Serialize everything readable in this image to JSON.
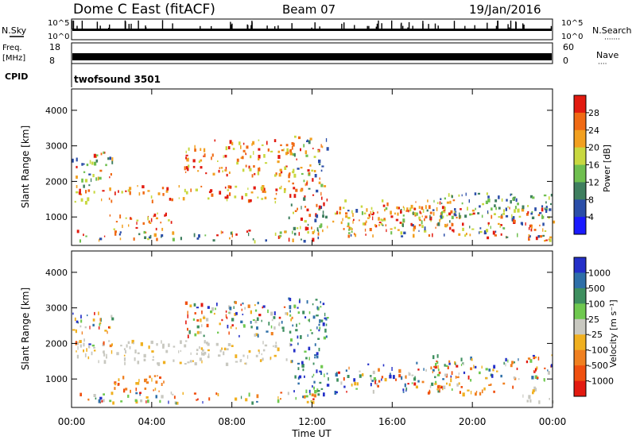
{
  "header": {
    "station": "Dome C East (fitACF)",
    "beam": "Beam 07",
    "date": "19/Jan/2016"
  },
  "top_panels": {
    "nsky_label": "N.Sky",
    "nsearch_label": "N.Search",
    "nsearch_dots": "·······",
    "nsky_ticks": [
      "10^5",
      "10^0"
    ],
    "nsearch_ticks": [
      "10^5",
      "10^0"
    ],
    "freq_label_1": "Freq.",
    "freq_label_2": "[MHz]",
    "freq_ticks": [
      "18",
      "8"
    ],
    "nave_label": "Nave",
    "nave_dots": "····",
    "nave_ticks": [
      "60",
      "0"
    ],
    "cpid_label": "CPID",
    "cpid_value": "twofsound 3501"
  },
  "chart_data": [
    {
      "type": "heatmap",
      "name": "power",
      "ylabel": "Slant Range [km]",
      "xlabel": "",
      "ylim": [
        200,
        4600
      ],
      "y_ticks": [
        "1000",
        "2000",
        "3000",
        "4000"
      ],
      "x_range_hours": [
        0,
        24
      ],
      "colorbar": {
        "label": "Power [dB]",
        "ticks": [
          "4",
          "8",
          "12",
          "16",
          "20",
          "24",
          "28"
        ],
        "colors": [
          "#1a1aff",
          "#2b4ea8",
          "#3f7f5f",
          "#6fbf4f",
          "#c8d840",
          "#f2a020",
          "#f06a14",
          "#e21b10"
        ]
      },
      "echo_bands": [
        {
          "t0": 0.1,
          "t1": 11.0,
          "r0": 1450,
          "r1": 1900,
          "level": "high"
        },
        {
          "t0": 1.8,
          "t1": 5.0,
          "r0": 650,
          "r1": 1150,
          "level": "high"
        },
        {
          "t0": 5.5,
          "t1": 11.2,
          "r0": 2200,
          "r1": 3200,
          "level": "high"
        },
        {
          "t0": 0.2,
          "t1": 12.5,
          "r0": 350,
          "r1": 650,
          "level": "mixed"
        },
        {
          "t0": 10.8,
          "t1": 12.8,
          "r0": 500,
          "r1": 3300,
          "level": "mixed"
        },
        {
          "t0": 13.0,
          "t1": 19.5,
          "r0": 650,
          "r1": 1500,
          "level": "high"
        },
        {
          "t0": 13.5,
          "t1": 24.0,
          "r0": 450,
          "r1": 1300,
          "level": "mixed"
        },
        {
          "t0": 18.0,
          "t1": 24.0,
          "r0": 1000,
          "r1": 1700,
          "level": "low"
        },
        {
          "t0": 0.0,
          "t1": 2.0,
          "r0": 1900,
          "r1": 2900,
          "level": "mixed"
        },
        {
          "t0": 22.5,
          "t1": 24.0,
          "r0": 350,
          "r1": 800,
          "level": "high"
        }
      ]
    },
    {
      "type": "heatmap",
      "name": "velocity",
      "ylabel": "Slant Range [km]",
      "xlabel": "Time UT",
      "ylim": [
        200,
        4600
      ],
      "y_ticks": [
        "1000",
        "2000",
        "3000",
        "4000"
      ],
      "x_ticks": [
        "00:00",
        "04:00",
        "08:00",
        "12:00",
        "16:00",
        "20:00",
        "00:00"
      ],
      "x_range_hours": [
        0,
        24
      ],
      "colorbar": {
        "label": "Velocity [m s⁻¹]",
        "ticks": [
          "1000",
          "500",
          "100",
          "25",
          "-25",
          "-100",
          "-500",
          "-1000"
        ],
        "colors": [
          "#2430c8",
          "#2e6fa8",
          "#3e8f5f",
          "#6fc84f",
          "#c8c8c0",
          "#f0b020",
          "#f08020",
          "#f05010",
          "#e31a10"
        ]
      },
      "echo_bands": [
        {
          "t0": 0.1,
          "t1": 11.0,
          "r0": 1450,
          "r1": 2100,
          "level": "grey"
        },
        {
          "t0": 1.8,
          "t1": 5.0,
          "r0": 650,
          "r1": 1150,
          "level": "negative"
        },
        {
          "t0": 5.5,
          "t1": 11.2,
          "r0": 2200,
          "r1": 3200,
          "level": "mixed"
        },
        {
          "t0": 0.2,
          "t1": 12.5,
          "r0": 350,
          "r1": 650,
          "level": "mixed"
        },
        {
          "t0": 10.8,
          "t1": 12.8,
          "r0": 500,
          "r1": 3300,
          "level": "positive"
        },
        {
          "t0": 13.0,
          "t1": 19.5,
          "r0": 650,
          "r1": 1500,
          "level": "mixed"
        },
        {
          "t0": 17.5,
          "t1": 22.0,
          "r0": 600,
          "r1": 900,
          "level": "negative"
        },
        {
          "t0": 18.0,
          "t1": 24.0,
          "r0": 1000,
          "r1": 1700,
          "level": "mixed"
        },
        {
          "t0": 0.0,
          "t1": 2.0,
          "r0": 1900,
          "r1": 2900,
          "level": "mixed"
        },
        {
          "t0": 22.5,
          "t1": 24.0,
          "r0": 350,
          "r1": 800,
          "level": "grey"
        }
      ]
    }
  ]
}
